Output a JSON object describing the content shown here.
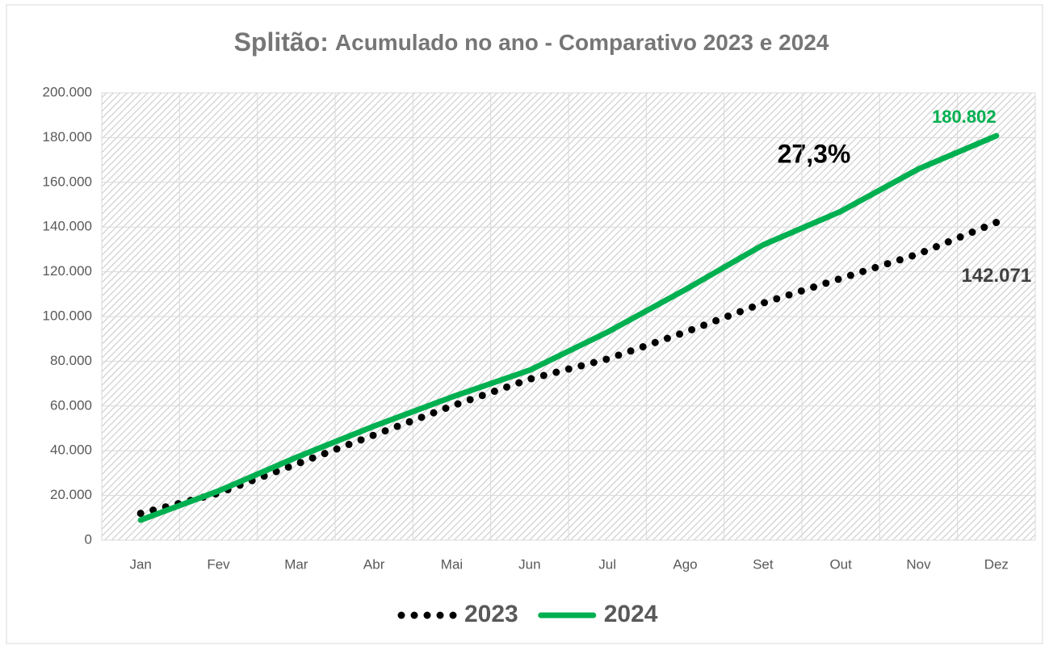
{
  "chart_data": {
    "type": "line",
    "title": "Splitão:",
    "subtitle": "Acumulado no ano - Comparativo 2023 e 2024",
    "categories": [
      "Jan",
      "Fev",
      "Mar",
      "Abr",
      "Mai",
      "Jun",
      "Jul",
      "Ago",
      "Set",
      "Out",
      "Nov",
      "Dez"
    ],
    "series": [
      {
        "name": "2023",
        "color": "#000000",
        "style": "dotted",
        "values": [
          12000,
          21000,
          34000,
          47000,
          60000,
          72000,
          81000,
          93000,
          106000,
          117000,
          128000,
          142071
        ],
        "value_labels": [
          null,
          null,
          null,
          null,
          null,
          null,
          null,
          null,
          null,
          null,
          null,
          "142.071"
        ]
      },
      {
        "name": "2024",
        "color": "#00b050",
        "style": "solid",
        "values": [
          9000,
          22000,
          37000,
          51000,
          64000,
          76000,
          93000,
          112000,
          132000,
          147000,
          166000,
          180802
        ],
        "value_labels": [
          null,
          null,
          null,
          null,
          null,
          null,
          null,
          null,
          null,
          null,
          null,
          "180.802"
        ]
      }
    ],
    "annotations": [
      "27,3%"
    ],
    "ylim": [
      0,
      200000
    ],
    "yticks": [
      0,
      {
        "value": 20000,
        "label": "20.000"
      },
      {
        "value": 40000,
        "label": "40.000"
      },
      {
        "value": 60000,
        "label": "60.000"
      },
      {
        "value": 80000,
        "label": "80.000"
      },
      {
        "value": 100000,
        "label": "100.000"
      },
      {
        "value": 120000,
        "label": "120.000"
      },
      {
        "value": 140000,
        "label": "140.000"
      },
      {
        "value": 160000,
        "label": "160.000"
      },
      {
        "value": 180000,
        "label": "180.000"
      },
      {
        "value": 200000,
        "label": "200.000"
      }
    ],
    "grid": true,
    "legend": "bottom"
  }
}
